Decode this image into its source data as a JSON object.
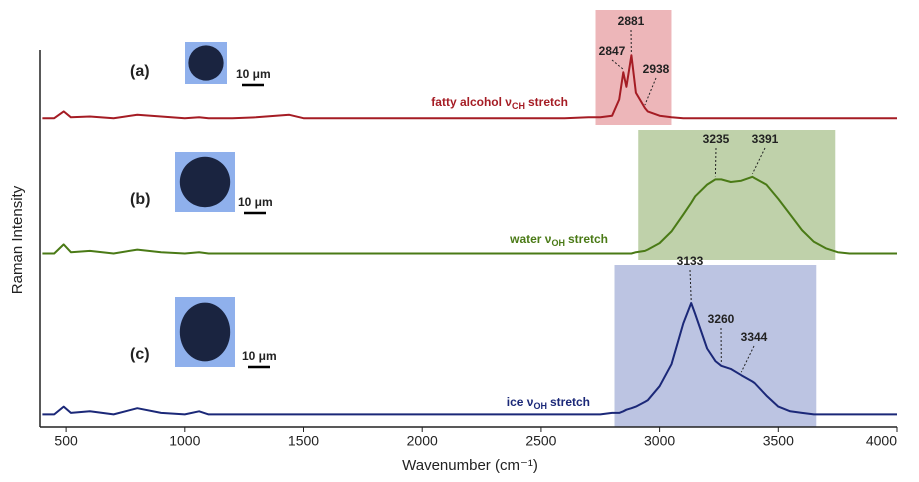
{
  "chart_data": [
    {
      "type": "line",
      "panel_label": "(a)",
      "scale_label": "10 μm",
      "label": "fatty alcohol ν",
      "label_sub": "CH",
      "label_tail": "stretch",
      "xlim": [
        390,
        4000
      ],
      "ylim": [
        0,
        100
      ],
      "highlight": [
        2730,
        3050
      ],
      "highlight_color": "#e79ea2",
      "peaks": [
        2847,
        2881,
        2938
      ],
      "x": [
        400,
        450,
        490,
        520,
        600,
        700,
        800,
        900,
        1000,
        1060,
        1100,
        1200,
        1300,
        1440,
        1500,
        1600,
        1700,
        1800,
        1900,
        2000,
        2100,
        2200,
        2300,
        2400,
        2500,
        2600,
        2700,
        2750,
        2800,
        2830,
        2847,
        2860,
        2881,
        2900,
        2938,
        2950,
        3000,
        3050,
        3100,
        3133,
        3150,
        3200,
        3235,
        3260,
        3300,
        3344,
        3391,
        3400,
        3450,
        3500,
        3550,
        3600,
        3650,
        3700,
        3750,
        3800,
        3900,
        4000
      ],
      "series": [
        {
          "color": "#a51c24",
          "values": [
            8,
            8,
            16,
            9,
            10,
            8,
            12,
            10,
            8,
            9,
            8,
            8,
            9,
            12,
            8,
            8,
            8,
            8,
            8,
            8,
            8,
            8,
            8,
            8,
            8,
            8,
            9,
            9,
            11,
            30,
            62,
            45,
            82,
            38,
            20,
            16,
            11,
            9,
            8,
            8,
            8,
            8,
            8,
            8,
            8,
            8,
            8,
            8,
            8,
            8,
            8,
            8,
            8,
            8,
            8,
            8,
            8,
            8
          ]
        }
      ]
    },
    {
      "type": "line",
      "panel_label": "(b)",
      "scale_label": "10 μm",
      "label": "water ν",
      "label_sub": "OH",
      "label_tail": "stretch",
      "ylabel": "Raman Intensity",
      "xlim": [
        390,
        4000
      ],
      "ylim": [
        0,
        100
      ],
      "highlight": [
        2910,
        3740
      ],
      "highlight_color": "#a9c28d",
      "peaks": [
        3235,
        3391
      ],
      "x": [
        400,
        450,
        490,
        520,
        600,
        700,
        800,
        900,
        1000,
        1060,
        1100,
        1200,
        1300,
        1440,
        1500,
        1600,
        1700,
        1800,
        1900,
        2000,
        2100,
        2200,
        2300,
        2400,
        2500,
        2600,
        2700,
        2750,
        2800,
        2830,
        2847,
        2860,
        2881,
        2900,
        2938,
        2950,
        3000,
        3050,
        3100,
        3133,
        3150,
        3200,
        3235,
        3260,
        3300,
        3344,
        3391,
        3400,
        3450,
        3500,
        3550,
        3600,
        3650,
        3700,
        3750,
        3800,
        3900,
        4000
      ],
      "series": [
        {
          "color": "#4a7a16",
          "values": [
            5,
            5,
            12,
            6,
            7,
            5,
            8,
            6,
            5,
            6,
            5,
            5,
            5,
            5,
            5,
            5,
            5,
            5,
            5,
            5,
            5,
            5,
            5,
            5,
            5,
            5,
            5,
            5,
            5,
            5,
            5,
            5,
            5,
            6,
            7,
            8,
            13,
            22,
            35,
            44,
            49,
            58,
            62,
            62,
            60,
            61,
            64,
            63,
            58,
            47,
            35,
            23,
            14,
            9,
            6,
            5,
            5,
            5
          ]
        }
      ]
    },
    {
      "type": "line",
      "panel_label": "(c)",
      "scale_label": "10 μm",
      "label": "ice ν",
      "label_sub": "OH",
      "label_tail": "stretch",
      "xlabel": "Wavenumber (cm⁻¹)",
      "xlim": [
        390,
        4000
      ],
      "xticks": [
        500,
        1000,
        1500,
        2000,
        2500,
        3000,
        3500,
        4000
      ],
      "ylim": [
        0,
        100
      ],
      "highlight": [
        2810,
        3660
      ],
      "highlight_color": "#a6b0d8",
      "peaks": [
        3133,
        3260,
        3344
      ],
      "x": [
        400,
        450,
        490,
        520,
        600,
        700,
        800,
        900,
        1000,
        1060,
        1100,
        1200,
        1300,
        1440,
        1500,
        1600,
        1700,
        1800,
        1900,
        2000,
        2100,
        2200,
        2300,
        2400,
        2500,
        2600,
        2700,
        2750,
        2800,
        2830,
        2847,
        2860,
        2881,
        2900,
        2938,
        2950,
        3000,
        3050,
        3100,
        3133,
        3150,
        3200,
        3235,
        3260,
        3300,
        3344,
        3391,
        3400,
        3450,
        3500,
        3550,
        3600,
        3650,
        3700,
        3750,
        3800,
        3900,
        4000
      ],
      "series": [
        {
          "color": "#1b2878",
          "values": [
            8,
            8,
            13,
            9,
            10,
            8,
            12,
            9,
            8,
            10,
            8,
            8,
            8,
            8,
            8,
            8,
            8,
            8,
            8,
            8,
            8,
            8,
            8,
            8,
            8,
            8,
            8,
            8,
            9,
            9,
            10,
            11,
            12,
            13,
            16,
            17,
            26,
            40,
            66,
            79,
            72,
            50,
            42,
            39,
            37,
            33,
            29,
            28,
            20,
            13,
            10,
            9,
            8,
            8,
            8,
            8,
            8,
            8
          ]
        }
      ]
    }
  ]
}
